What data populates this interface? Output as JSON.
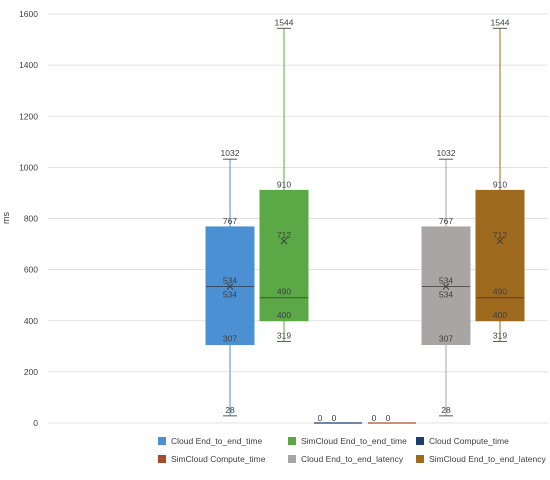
{
  "chart_data": {
    "type": "box",
    "ylabel": "ms",
    "ylim": [
      0,
      1600
    ],
    "yticks": [
      0,
      200,
      400,
      600,
      800,
      1000,
      1200,
      1400,
      1600
    ],
    "grid": true,
    "legend_position": "bottom",
    "series": [
      {
        "name": "Cloud End_to_end_time",
        "color": "#4a90d2",
        "min": 28,
        "q1": 307,
        "median": 534,
        "mean": 534,
        "q3": 767,
        "max": 1032,
        "labels": {
          "min": "28",
          "q1": "307",
          "median": "534",
          "mean": "534",
          "q3": "767",
          "max": "1032"
        }
      },
      {
        "name": "SimCloud End_to_end_time",
        "color": "#5ba847",
        "min": 319,
        "q1": 400,
        "median": 490,
        "mean": 712,
        "q3": 910,
        "max": 1544,
        "labels": {
          "min": "319",
          "q1": "400",
          "median": "490",
          "mean": "712",
          "q3": "910",
          "max": "1544"
        }
      },
      {
        "name": "Cloud Compute_time",
        "color": "#1f3d70",
        "min": 0,
        "q1": 0,
        "median": 0,
        "mean": 0,
        "q3": 0,
        "max": 0,
        "labels": {
          "min": "0",
          "max": "0"
        }
      },
      {
        "name": "SimCloud Compute_time",
        "color": "#a64b2a",
        "min": 0,
        "q1": 0,
        "median": 0,
        "mean": 0,
        "q3": 0,
        "max": 0,
        "labels": {
          "min": "0",
          "max": "0"
        }
      },
      {
        "name": "Cloud End_to_end_latency",
        "color": "#aaa5a5",
        "min": 28,
        "q1": 307,
        "median": 534,
        "mean": 534,
        "q3": 767,
        "max": 1032,
        "labels": {
          "min": "28",
          "q1": "307",
          "median": "534",
          "mean": "534",
          "q3": "767",
          "max": "1032"
        }
      },
      {
        "name": "SimCloud End_to_end_latency",
        "color": "#9e6b1e",
        "min": 319,
        "q1": 400,
        "median": 490,
        "mean": 712,
        "q3": 910,
        "max": 1544,
        "labels": {
          "min": "319",
          "q1": "400",
          "median": "490",
          "mean": "712",
          "q3": "910",
          "max": "1544"
        }
      }
    ]
  }
}
